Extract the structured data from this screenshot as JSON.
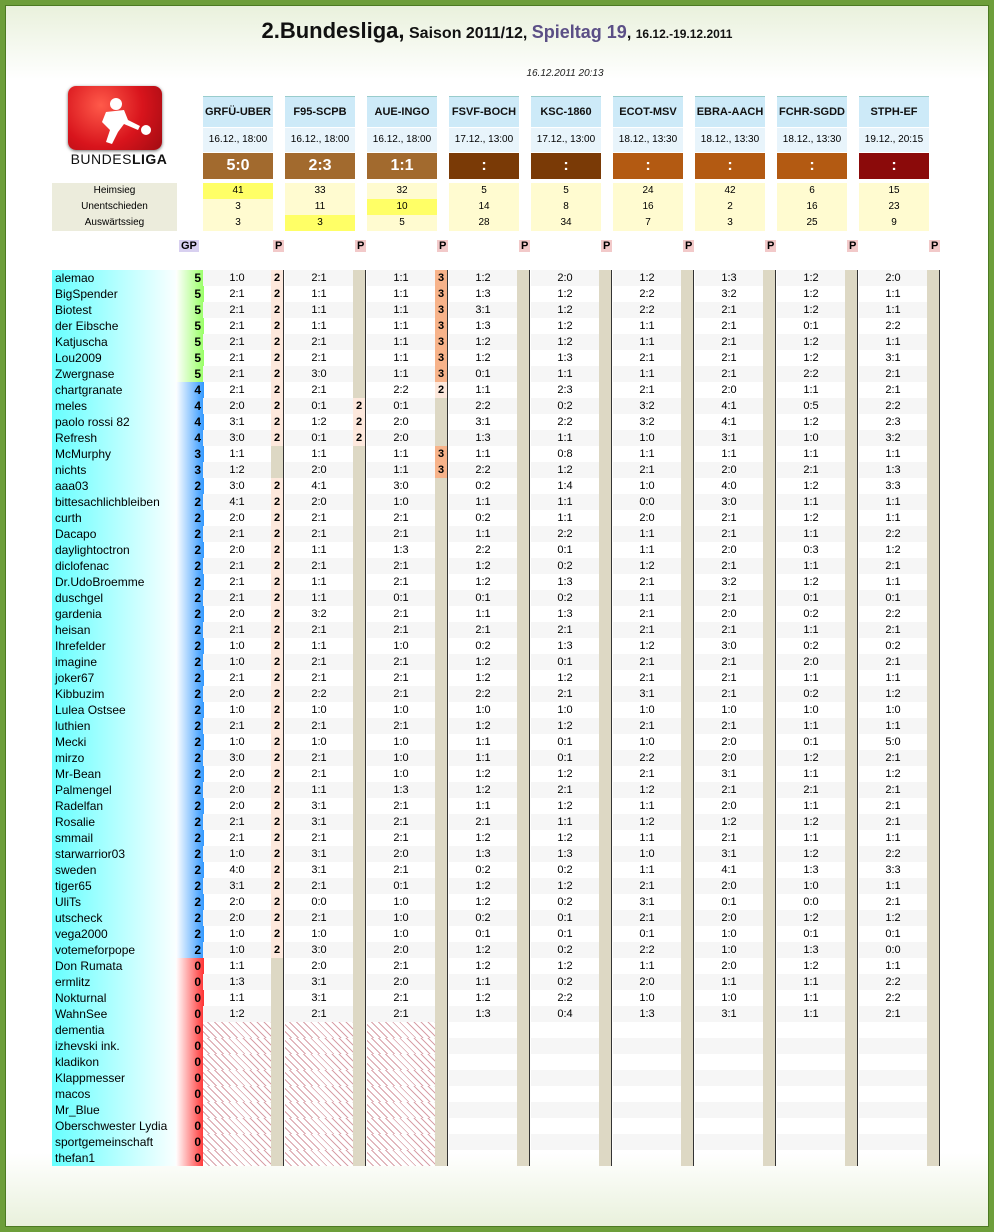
{
  "title": {
    "league": "2.Bundesliga",
    "sep1": ",",
    "season": "Saison 2011/12",
    "sep2": ",",
    "matchday": "Spieltag 19",
    "sep3": ",",
    "dates": "16.12.-19.12.2011"
  },
  "timestamp": "16.12.2011 20:13",
  "logo": {
    "text_normal": "BUNDES",
    "text_bold": "LIGA",
    "icon": "bundesliga-logo-icon"
  },
  "colors": {
    "accent_green": "#6d9e3a",
    "header_blue": "#cdeaf8",
    "gp_cyan": "#66ffff",
    "gp_blue": "#3399ff",
    "gp_green": "#99ff66",
    "gp_red": "#ff3333",
    "highlight_yellow": "#ffff66",
    "points_orange": "#f7b38a"
  },
  "stat_labels": [
    "Heimsieg",
    "Unentschieden",
    "Auswärtssieg"
  ],
  "labels": {
    "gp": "GP",
    "p": "P"
  },
  "matches": [
    {
      "code": "GRFÜ-UBER",
      "date": "16.12., 18:00",
      "result": "5:0",
      "res_color": "#a26a2e",
      "stats": [
        "41",
        "3",
        "3"
      ],
      "hl": 0
    },
    {
      "code": "F95-SCPB",
      "date": "16.12., 18:00",
      "result": "2:3",
      "res_color": "#a26a2e",
      "stats": [
        "33",
        "11",
        "3"
      ],
      "hl": 2
    },
    {
      "code": "AUE-INGO",
      "date": "16.12., 18:00",
      "result": "1:1",
      "res_color": "#a26a2e",
      "stats": [
        "32",
        "10",
        "5"
      ],
      "hl": 1
    },
    {
      "code": "FSVF-BOCH",
      "date": "17.12., 13:00",
      "result": ":",
      "res_color": "#7a3a06",
      "stats": [
        "5",
        "14",
        "28"
      ],
      "hl": -1
    },
    {
      "code": "KSC-1860",
      "date": "17.12., 13:00",
      "result": ":",
      "res_color": "#7a3a06",
      "stats": [
        "5",
        "8",
        "34"
      ],
      "hl": -1
    },
    {
      "code": "ECOT-MSV",
      "date": "18.12., 13:30",
      "result": ":",
      "res_color": "#b35a12",
      "stats": [
        "24",
        "16",
        "7"
      ],
      "hl": -1
    },
    {
      "code": "EBRA-AACH",
      "date": "18.12., 13:30",
      "result": ":",
      "res_color": "#b35a12",
      "stats": [
        "42",
        "2",
        "3"
      ],
      "hl": -1
    },
    {
      "code": "FCHR-SGDD",
      "date": "18.12., 13:30",
      "result": ":",
      "res_color": "#b35a12",
      "stats": [
        "6",
        "16",
        "25"
      ],
      "hl": -1
    },
    {
      "code": "STPH-EF",
      "date": "19.12., 20:15",
      "result": ":",
      "res_color": "#8b0a0a",
      "stats": [
        "15",
        "23",
        "9"
      ],
      "hl": -1
    }
  ],
  "players": [
    {
      "name": "alemao",
      "gp": "5",
      "tips": [
        "1:0",
        "2:1",
        "1:1",
        "1:2",
        "2:0",
        "1:2",
        "1:3",
        "1:2",
        "2:0"
      ],
      "pts": [
        "2",
        "",
        "3"
      ]
    },
    {
      "name": "BigSpender",
      "gp": "5",
      "tips": [
        "2:1",
        "1:1",
        "1:1",
        "1:3",
        "1:2",
        "2:2",
        "3:2",
        "1:2",
        "1:1"
      ],
      "pts": [
        "2",
        "",
        "3"
      ]
    },
    {
      "name": "Biotest",
      "gp": "5",
      "tips": [
        "2:1",
        "1:1",
        "1:1",
        "3:1",
        "1:2",
        "2:2",
        "2:1",
        "1:2",
        "1:1"
      ],
      "pts": [
        "2",
        "",
        "3"
      ]
    },
    {
      "name": "der Eibsche",
      "gp": "5",
      "tips": [
        "2:1",
        "1:1",
        "1:1",
        "1:3",
        "1:2",
        "1:1",
        "2:1",
        "0:1",
        "2:2"
      ],
      "pts": [
        "2",
        "",
        "3"
      ]
    },
    {
      "name": "Katjuscha",
      "gp": "5",
      "tips": [
        "2:1",
        "2:1",
        "1:1",
        "1:2",
        "1:2",
        "1:1",
        "2:1",
        "1:2",
        "1:1"
      ],
      "pts": [
        "2",
        "",
        "3"
      ]
    },
    {
      "name": "Lou2009",
      "gp": "5",
      "tips": [
        "2:1",
        "2:1",
        "1:1",
        "1:2",
        "1:3",
        "2:1",
        "2:1",
        "1:2",
        "3:1"
      ],
      "pts": [
        "2",
        "",
        "3"
      ]
    },
    {
      "name": "Zwergnase",
      "gp": "5",
      "tips": [
        "2:1",
        "3:0",
        "1:1",
        "0:1",
        "1:1",
        "1:1",
        "2:1",
        "2:2",
        "2:1"
      ],
      "pts": [
        "2",
        "",
        "3"
      ]
    },
    {
      "name": "chartgranate",
      "gp": "4",
      "tips": [
        "2:1",
        "2:1",
        "2:2",
        "1:1",
        "2:3",
        "2:1",
        "2:0",
        "1:1",
        "2:1"
      ],
      "pts": [
        "2",
        "",
        "2"
      ]
    },
    {
      "name": "meles",
      "gp": "4",
      "tips": [
        "2:0",
        "0:1",
        "0:1",
        "2:2",
        "0:2",
        "3:2",
        "4:1",
        "0:5",
        "2:2"
      ],
      "pts": [
        "2",
        "2",
        ""
      ]
    },
    {
      "name": "paolo rossi 82",
      "gp": "4",
      "tips": [
        "3:1",
        "1:2",
        "2:0",
        "3:1",
        "2:2",
        "3:2",
        "4:1",
        "1:2",
        "2:3"
      ],
      "pts": [
        "2",
        "2",
        ""
      ]
    },
    {
      "name": "Refresh",
      "gp": "4",
      "tips": [
        "3:0",
        "0:1",
        "2:0",
        "1:3",
        "1:1",
        "1:0",
        "3:1",
        "1:0",
        "3:2"
      ],
      "pts": [
        "2",
        "2",
        ""
      ]
    },
    {
      "name": "McMurphy",
      "gp": "3",
      "tips": [
        "1:1",
        "1:1",
        "1:1",
        "1:1",
        "0:8",
        "1:1",
        "1:1",
        "1:1",
        "1:1"
      ],
      "pts": [
        "",
        "",
        "3"
      ]
    },
    {
      "name": "nichts",
      "gp": "3",
      "tips": [
        "1:2",
        "2:0",
        "1:1",
        "2:2",
        "1:2",
        "2:1",
        "2:0",
        "2:1",
        "1:3"
      ],
      "pts": [
        "",
        "",
        "3"
      ]
    },
    {
      "name": "aaa03",
      "gp": "2",
      "tips": [
        "3:0",
        "4:1",
        "3:0",
        "0:2",
        "1:4",
        "1:0",
        "4:0",
        "1:2",
        "3:3"
      ],
      "pts": [
        "2",
        "",
        ""
      ]
    },
    {
      "name": "bittesachlichbleiben",
      "gp": "2",
      "tips": [
        "4:1",
        "2:0",
        "1:0",
        "1:1",
        "1:1",
        "0:0",
        "3:0",
        "1:1",
        "1:1"
      ],
      "pts": [
        "2",
        "",
        ""
      ]
    },
    {
      "name": "curth",
      "gp": "2",
      "tips": [
        "2:0",
        "2:1",
        "2:1",
        "0:2",
        "1:1",
        "2:0",
        "2:1",
        "1:2",
        "1:1"
      ],
      "pts": [
        "2",
        "",
        ""
      ]
    },
    {
      "name": "Dacapo",
      "gp": "2",
      "tips": [
        "2:1",
        "2:1",
        "2:1",
        "1:1",
        "2:2",
        "1:1",
        "2:1",
        "1:1",
        "2:2"
      ],
      "pts": [
        "2",
        "",
        ""
      ]
    },
    {
      "name": "daylightoctron",
      "gp": "2",
      "tips": [
        "2:0",
        "1:1",
        "1:3",
        "2:2",
        "0:1",
        "1:1",
        "2:0",
        "0:3",
        "1:2"
      ],
      "pts": [
        "2",
        "",
        ""
      ]
    },
    {
      "name": "diclofenac",
      "gp": "2",
      "tips": [
        "2:1",
        "2:1",
        "2:1",
        "1:2",
        "0:2",
        "1:2",
        "2:1",
        "1:1",
        "2:1"
      ],
      "pts": [
        "2",
        "",
        ""
      ]
    },
    {
      "name": "Dr.UdoBroemme",
      "gp": "2",
      "tips": [
        "2:1",
        "1:1",
        "2:1",
        "1:2",
        "1:3",
        "2:1",
        "3:2",
        "1:2",
        "1:1"
      ],
      "pts": [
        "2",
        "",
        ""
      ]
    },
    {
      "name": "duschgel",
      "gp": "2",
      "tips": [
        "2:1",
        "1:1",
        "0:1",
        "0:1",
        "0:2",
        "1:1",
        "2:1",
        "0:1",
        "0:1"
      ],
      "pts": [
        "2",
        "",
        ""
      ]
    },
    {
      "name": "gardenia",
      "gp": "2",
      "tips": [
        "2:0",
        "3:2",
        "2:1",
        "1:1",
        "1:3",
        "2:1",
        "2:0",
        "0:2",
        "2:2"
      ],
      "pts": [
        "2",
        "",
        ""
      ]
    },
    {
      "name": "heisan",
      "gp": "2",
      "tips": [
        "2:1",
        "2:1",
        "2:1",
        "2:1",
        "2:1",
        "2:1",
        "2:1",
        "1:1",
        "2:1"
      ],
      "pts": [
        "2",
        "",
        ""
      ]
    },
    {
      "name": "Ihrefelder",
      "gp": "2",
      "tips": [
        "1:0",
        "1:1",
        "1:0",
        "0:2",
        "1:3",
        "1:2",
        "3:0",
        "0:2",
        "0:2"
      ],
      "pts": [
        "2",
        "",
        ""
      ]
    },
    {
      "name": "imagine",
      "gp": "2",
      "tips": [
        "1:0",
        "2:1",
        "2:1",
        "1:2",
        "0:1",
        "2:1",
        "2:1",
        "2:0",
        "2:1"
      ],
      "pts": [
        "2",
        "",
        ""
      ]
    },
    {
      "name": "joker67",
      "gp": "2",
      "tips": [
        "2:1",
        "2:1",
        "2:1",
        "1:2",
        "1:2",
        "2:1",
        "2:1",
        "1:1",
        "1:1"
      ],
      "pts": [
        "2",
        "",
        ""
      ]
    },
    {
      "name": "Kibbuzim",
      "gp": "2",
      "tips": [
        "2:0",
        "2:2",
        "2:1",
        "2:2",
        "2:1",
        "3:1",
        "2:1",
        "0:2",
        "1:2"
      ],
      "pts": [
        "2",
        "",
        ""
      ]
    },
    {
      "name": "Lulea Ostsee",
      "gp": "2",
      "tips": [
        "1:0",
        "1:0",
        "1:0",
        "1:0",
        "1:0",
        "1:0",
        "1:0",
        "1:0",
        "1:0"
      ],
      "pts": [
        "2",
        "",
        ""
      ]
    },
    {
      "name": "luthien",
      "gp": "2",
      "tips": [
        "2:1",
        "2:1",
        "2:1",
        "1:2",
        "1:2",
        "2:1",
        "2:1",
        "1:1",
        "1:1"
      ],
      "pts": [
        "2",
        "",
        ""
      ]
    },
    {
      "name": "Mecki",
      "gp": "2",
      "tips": [
        "1:0",
        "1:0",
        "1:0",
        "1:1",
        "0:1",
        "1:0",
        "2:0",
        "0:1",
        "5:0"
      ],
      "pts": [
        "2",
        "",
        ""
      ]
    },
    {
      "name": "mirzo",
      "gp": "2",
      "tips": [
        "3:0",
        "2:1",
        "1:0",
        "1:1",
        "0:1",
        "2:2",
        "2:0",
        "1:2",
        "2:1"
      ],
      "pts": [
        "2",
        "",
        ""
      ]
    },
    {
      "name": "Mr-Bean",
      "gp": "2",
      "tips": [
        "2:0",
        "2:1",
        "1:0",
        "1:2",
        "1:2",
        "2:1",
        "3:1",
        "1:1",
        "1:2"
      ],
      "pts": [
        "2",
        "",
        ""
      ]
    },
    {
      "name": "Palmengel",
      "gp": "2",
      "tips": [
        "2:0",
        "1:1",
        "1:3",
        "1:2",
        "2:1",
        "1:2",
        "2:1",
        "2:1",
        "2:1"
      ],
      "pts": [
        "2",
        "",
        ""
      ]
    },
    {
      "name": "Radelfan",
      "gp": "2",
      "tips": [
        "2:0",
        "3:1",
        "2:1",
        "1:1",
        "1:2",
        "1:1",
        "2:0",
        "1:1",
        "2:1"
      ],
      "pts": [
        "2",
        "",
        ""
      ]
    },
    {
      "name": "Rosalie",
      "gp": "2",
      "tips": [
        "2:1",
        "3:1",
        "2:1",
        "2:1",
        "1:1",
        "1:2",
        "1:2",
        "1:2",
        "2:1"
      ],
      "pts": [
        "2",
        "",
        ""
      ]
    },
    {
      "name": "smmail",
      "gp": "2",
      "tips": [
        "2:1",
        "2:1",
        "2:1",
        "1:2",
        "1:2",
        "1:1",
        "2:1",
        "1:1",
        "1:1"
      ],
      "pts": [
        "2",
        "",
        ""
      ]
    },
    {
      "name": "starwarrior03",
      "gp": "2",
      "tips": [
        "1:0",
        "3:1",
        "2:0",
        "1:3",
        "1:3",
        "1:0",
        "3:1",
        "1:2",
        "2:2"
      ],
      "pts": [
        "2",
        "",
        ""
      ]
    },
    {
      "name": "sweden",
      "gp": "2",
      "tips": [
        "4:0",
        "3:1",
        "2:1",
        "0:2",
        "0:2",
        "1:1",
        "4:1",
        "1:3",
        "3:3"
      ],
      "pts": [
        "2",
        "",
        ""
      ]
    },
    {
      "name": "tiger65",
      "gp": "2",
      "tips": [
        "3:1",
        "2:1",
        "0:1",
        "1:2",
        "1:2",
        "2:1",
        "2:0",
        "1:0",
        "1:1"
      ],
      "pts": [
        "2",
        "",
        ""
      ]
    },
    {
      "name": "UliTs",
      "gp": "2",
      "tips": [
        "2:0",
        "0:0",
        "1:0",
        "1:2",
        "0:2",
        "3:1",
        "0:1",
        "0:0",
        "2:1"
      ],
      "pts": [
        "2",
        "",
        ""
      ]
    },
    {
      "name": "utscheck",
      "gp": "2",
      "tips": [
        "2:0",
        "2:1",
        "1:0",
        "0:2",
        "0:1",
        "2:1",
        "2:0",
        "1:2",
        "1:2"
      ],
      "pts": [
        "2",
        "",
        ""
      ]
    },
    {
      "name": "vega2000",
      "gp": "2",
      "tips": [
        "1:0",
        "1:0",
        "1:0",
        "0:1",
        "0:1",
        "0:1",
        "1:0",
        "0:1",
        "0:1"
      ],
      "pts": [
        "2",
        "",
        ""
      ]
    },
    {
      "name": "votemeforpope",
      "gp": "2",
      "tips": [
        "1:0",
        "3:0",
        "2:0",
        "1:2",
        "0:2",
        "2:2",
        "1:0",
        "1:3",
        "0:0"
      ],
      "pts": [
        "2",
        "",
        ""
      ]
    },
    {
      "name": "Don Rumata",
      "gp": "0",
      "tips": [
        "1:1",
        "2:0",
        "2:1",
        "1:2",
        "1:2",
        "1:1",
        "2:0",
        "1:2",
        "1:1"
      ],
      "pts": [
        "",
        "",
        ""
      ]
    },
    {
      "name": "ermlitz",
      "gp": "0",
      "tips": [
        "1:3",
        "3:1",
        "2:0",
        "1:1",
        "0:2",
        "2:0",
        "1:1",
        "1:1",
        "2:2"
      ],
      "pts": [
        "",
        "",
        ""
      ]
    },
    {
      "name": "Nokturnal",
      "gp": "0",
      "tips": [
        "1:1",
        "3:1",
        "2:1",
        "1:2",
        "2:2",
        "1:0",
        "1:0",
        "1:1",
        "2:2"
      ],
      "pts": [
        "",
        "",
        ""
      ]
    },
    {
      "name": "WahnSee",
      "gp": "0",
      "tips": [
        "1:2",
        "2:1",
        "2:1",
        "1:3",
        "0:4",
        "1:3",
        "3:1",
        "1:1",
        "2:1"
      ],
      "pts": [
        "",
        "",
        ""
      ]
    },
    {
      "name": "dementia",
      "gp": "0",
      "tips": [
        "",
        "",
        "",
        "",
        "",
        "",
        "",
        "",
        ""
      ],
      "pts": [
        "",
        "",
        ""
      ]
    },
    {
      "name": "izhevski ink.",
      "gp": "0",
      "tips": [
        "",
        "",
        "",
        "",
        "",
        "",
        "",
        "",
        ""
      ],
      "pts": [
        "",
        "",
        ""
      ]
    },
    {
      "name": "kladikon",
      "gp": "0",
      "tips": [
        "",
        "",
        "",
        "",
        "",
        "",
        "",
        "",
        ""
      ],
      "pts": [
        "",
        "",
        ""
      ]
    },
    {
      "name": "Klappmesser",
      "gp": "0",
      "tips": [
        "",
        "",
        "",
        "",
        "",
        "",
        "",
        "",
        ""
      ],
      "pts": [
        "",
        "",
        ""
      ]
    },
    {
      "name": "macos",
      "gp": "0",
      "tips": [
        "",
        "",
        "",
        "",
        "",
        "",
        "",
        "",
        ""
      ],
      "pts": [
        "",
        "",
        ""
      ]
    },
    {
      "name": "Mr_Blue",
      "gp": "0",
      "tips": [
        "",
        "",
        "",
        "",
        "",
        "",
        "",
        "",
        ""
      ],
      "pts": [
        "",
        "",
        ""
      ]
    },
    {
      "name": "Oberschwester Lydia",
      "gp": "0",
      "tips": [
        "",
        "",
        "",
        "",
        "",
        "",
        "",
        "",
        ""
      ],
      "pts": [
        "",
        "",
        ""
      ]
    },
    {
      "name": "sportgemeinschaft",
      "gp": "0",
      "tips": [
        "",
        "",
        "",
        "",
        "",
        "",
        "",
        "",
        ""
      ],
      "pts": [
        "",
        "",
        ""
      ]
    },
    {
      "name": "thefan1",
      "gp": "0",
      "tips": [
        "",
        "",
        "",
        "",
        "",
        "",
        "",
        "",
        ""
      ],
      "pts": [
        "",
        "",
        ""
      ]
    }
  ]
}
